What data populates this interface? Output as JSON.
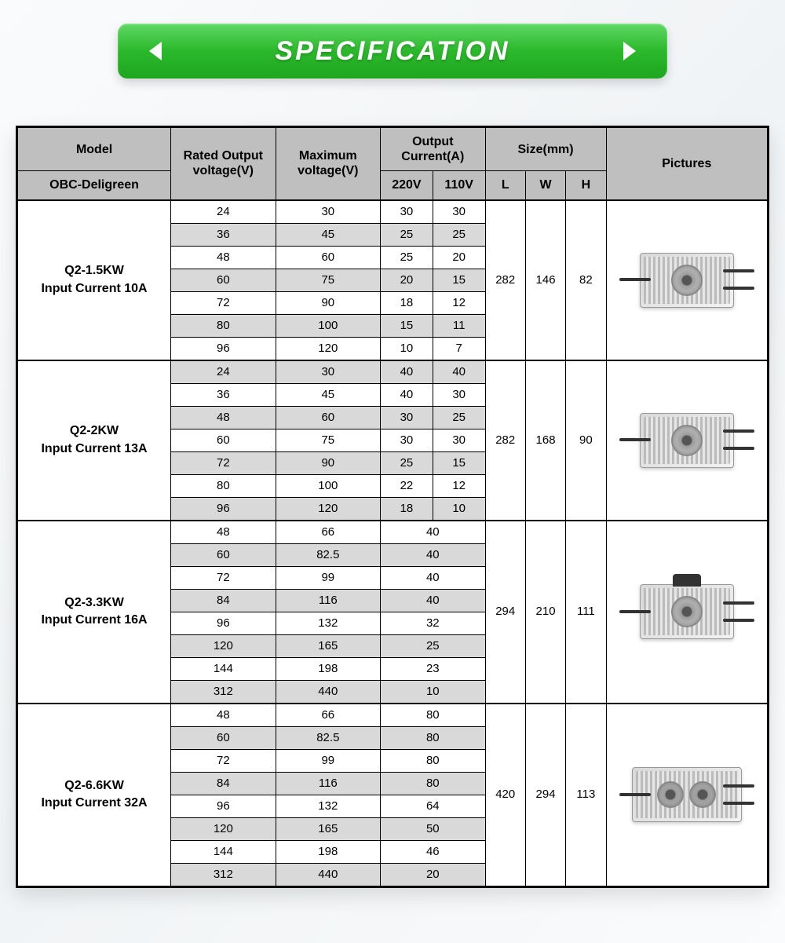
{
  "banner": {
    "title": "SPECIFICATION"
  },
  "colors": {
    "banner_gradient_top": "#5fd865",
    "banner_gradient_bottom": "#1fa61f",
    "header_bg": "#bfbfbf",
    "stripe_bg": "#d9d9d9",
    "border": "#000000",
    "page_bg": "#fafbfc"
  },
  "header": {
    "model": "Model",
    "subtitle": "OBC-Deligreen",
    "rated_output_voltage": "Rated Output voltage(V)",
    "maximum_voltage": "Maximum voltage(V)",
    "output_current": "Output Current(A)",
    "oc_220": "220V",
    "oc_110": "110V",
    "size": "Size(mm)",
    "size_l": "L",
    "size_w": "W",
    "size_h": "H",
    "pictures": "Pictures"
  },
  "groups": [
    {
      "model_line1": "Q2-1.5KW",
      "model_line2": "Input Current 10A",
      "size": {
        "l": "282",
        "w": "146",
        "h": "82"
      },
      "rows": [
        {
          "rov": "24",
          "mv": "30",
          "c220": "30",
          "c110": "30",
          "stripe": false
        },
        {
          "rov": "36",
          "mv": "45",
          "c220": "25",
          "c110": "25",
          "stripe": true
        },
        {
          "rov": "48",
          "mv": "60",
          "c220": "25",
          "c110": "20",
          "stripe": false
        },
        {
          "rov": "60",
          "mv": "75",
          "c220": "20",
          "c110": "15",
          "stripe": true
        },
        {
          "rov": "72",
          "mv": "90",
          "c220": "18",
          "c110": "12",
          "stripe": false
        },
        {
          "rov": "80",
          "mv": "100",
          "c220": "15",
          "c110": "11",
          "stripe": true
        },
        {
          "rov": "96",
          "mv": "120",
          "c220": "10",
          "c110": "7",
          "stripe": false
        }
      ],
      "merged_current": false,
      "picture_variant": "single"
    },
    {
      "model_line1": "Q2-2KW",
      "model_line2": "Input Current 13A",
      "size": {
        "l": "282",
        "w": "168",
        "h": "90"
      },
      "rows": [
        {
          "rov": "24",
          "mv": "30",
          "c220": "40",
          "c110": "40",
          "stripe": true
        },
        {
          "rov": "36",
          "mv": "45",
          "c220": "40",
          "c110": "30",
          "stripe": false
        },
        {
          "rov": "48",
          "mv": "60",
          "c220": "30",
          "c110": "25",
          "stripe": true
        },
        {
          "rov": "60",
          "mv": "75",
          "c220": "30",
          "c110": "30",
          "stripe": false
        },
        {
          "rov": "72",
          "mv": "90",
          "c220": "25",
          "c110": "15",
          "stripe": true
        },
        {
          "rov": "80",
          "mv": "100",
          "c220": "22",
          "c110": "12",
          "stripe": false
        },
        {
          "rov": "96",
          "mv": "120",
          "c220": "18",
          "c110": "10",
          "stripe": true
        }
      ],
      "merged_current": false,
      "picture_variant": "single"
    },
    {
      "model_line1": "Q2-3.3KW",
      "model_line2": "Input Current 16A",
      "size": {
        "l": "294",
        "w": "210",
        "h": "111"
      },
      "rows": [
        {
          "rov": "48",
          "mv": "66",
          "c": "40",
          "stripe": false
        },
        {
          "rov": "60",
          "mv": "82.5",
          "c": "40",
          "stripe": true
        },
        {
          "rov": "72",
          "mv": "99",
          "c": "40",
          "stripe": false
        },
        {
          "rov": "84",
          "mv": "116",
          "c": "40",
          "stripe": true
        },
        {
          "rov": "96",
          "mv": "132",
          "c": "32",
          "stripe": false
        },
        {
          "rov": "120",
          "mv": "165",
          "c": "25",
          "stripe": true
        },
        {
          "rov": "144",
          "mv": "198",
          "c": "23",
          "stripe": false
        },
        {
          "rov": "312",
          "mv": "440",
          "c": "10",
          "stripe": true
        }
      ],
      "merged_current": true,
      "picture_variant": "single-handle"
    },
    {
      "model_line1": "Q2-6.6KW",
      "model_line2": "Input Current 32A",
      "size": {
        "l": "420",
        "w": "294",
        "h": "113"
      },
      "rows": [
        {
          "rov": "48",
          "mv": "66",
          "c": "80",
          "stripe": false
        },
        {
          "rov": "60",
          "mv": "82.5",
          "c": "80",
          "stripe": true
        },
        {
          "rov": "72",
          "mv": "99",
          "c": "80",
          "stripe": false
        },
        {
          "rov": "84",
          "mv": "116",
          "c": "80",
          "stripe": true
        },
        {
          "rov": "96",
          "mv": "132",
          "c": "64",
          "stripe": false
        },
        {
          "rov": "120",
          "mv": "165",
          "c": "50",
          "stripe": true
        },
        {
          "rov": "144",
          "mv": "198",
          "c": "46",
          "stripe": false
        },
        {
          "rov": "312",
          "mv": "440",
          "c": "20",
          "stripe": true
        }
      ],
      "merged_current": true,
      "picture_variant": "double"
    }
  ]
}
